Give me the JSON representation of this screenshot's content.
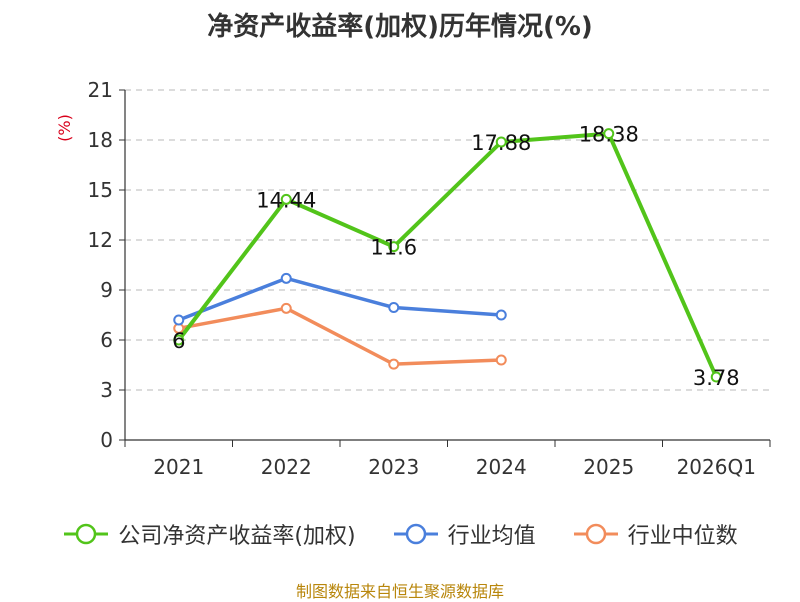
{
  "chart_data": {
    "type": "line",
    "title": "净资产收益率(加权)历年情况(%)",
    "ylabel": "(%)",
    "xlabel": "",
    "categories": [
      "2021",
      "2022",
      "2023",
      "2024",
      "2025",
      "2026Q1"
    ],
    "yticks": [
      "0",
      "3",
      "6",
      "9",
      "12",
      "15",
      "18",
      "21"
    ],
    "ylim": [
      0,
      21
    ],
    "grid": true,
    "legend_position": "bottom",
    "series": [
      {
        "name": "公司净资产收益率(加权)",
        "color": "#52c41a",
        "values": [
          6,
          14.44,
          11.6,
          17.88,
          18.38,
          3.78
        ],
        "labels": [
          "6",
          "14.44",
          "11.6",
          "17.88",
          "18.38",
          "3.78"
        ]
      },
      {
        "name": "行业均值",
        "color": "#4a7fdc",
        "values": [
          7.2,
          9.7,
          7.95,
          7.5,
          null,
          null
        ]
      },
      {
        "name": "行业中位数",
        "color": "#f28c5b",
        "values": [
          6.7,
          7.9,
          4.55,
          4.8,
          null,
          null
        ]
      }
    ],
    "ylabel_color": "#d9001b",
    "source_color": "#b8860b"
  },
  "source": "制图数据来自恒生聚源数据库"
}
